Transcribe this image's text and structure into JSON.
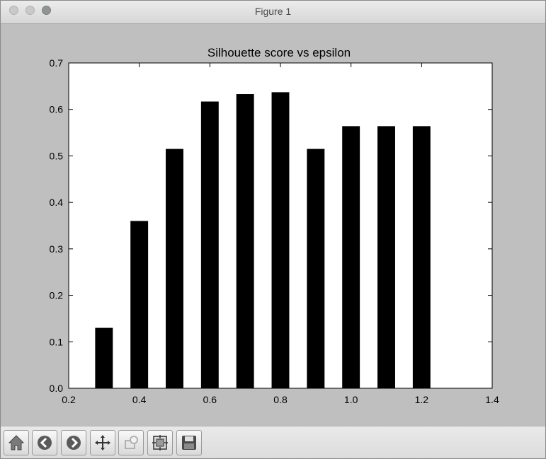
{
  "window": {
    "title": "Figure 1"
  },
  "chart_data": {
    "type": "bar",
    "title": "Silhouette score vs epsilon",
    "xlabel": "",
    "ylabel": "",
    "x": [
      0.3,
      0.4,
      0.5,
      0.6,
      0.7,
      0.8,
      0.9,
      1.0,
      1.1,
      1.2
    ],
    "values": [
      0.13,
      0.36,
      0.515,
      0.617,
      0.633,
      0.637,
      0.515,
      0.564,
      0.564,
      0.564
    ],
    "bar_width": 0.05,
    "bar_color": "#000000",
    "xlim": [
      0.2,
      1.4
    ],
    "ylim": [
      0.0,
      0.7
    ],
    "xticks": [
      "0.2",
      "0.4",
      "0.6",
      "0.8",
      "1.0",
      "1.2",
      "1.4"
    ],
    "yticks": [
      "0.0",
      "0.1",
      "0.2",
      "0.3",
      "0.4",
      "0.5",
      "0.6",
      "0.7"
    ],
    "grid": false,
    "legend": "none"
  },
  "toolbar": {
    "buttons": [
      {
        "icon": "home-icon"
      },
      {
        "icon": "back-arrow-icon"
      },
      {
        "icon": "forward-arrow-icon"
      },
      {
        "icon": "pan-move-icon"
      },
      {
        "icon": "zoom-rectangle-icon"
      },
      {
        "icon": "configure-subplots-icon"
      },
      {
        "icon": "save-disk-icon"
      }
    ]
  }
}
